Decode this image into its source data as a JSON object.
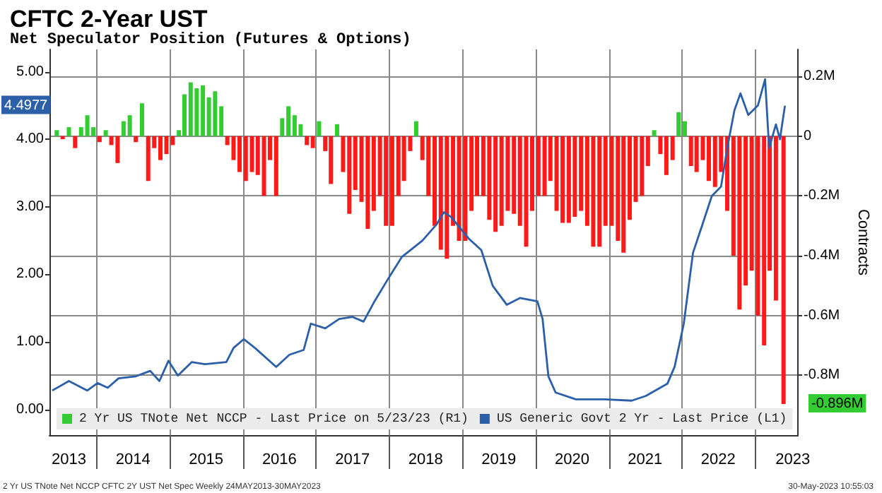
{
  "chart_data": {
    "type": "bar",
    "title": "CFTC 2-Year UST",
    "subtitle": "Net Speculator Position (Futures & Options)",
    "y2label": "Contracts",
    "annotations": [
      "4.4977",
      "-0.896M",
      "2 Yr US TNote Net NCCP CFTC 2Y UST Net Spec Weekly 24MAY2013-30MAY2023",
      "30-May-2023 10:55:03"
    ],
    "xlim": [
      "2013-05-10",
      "2023-08-03"
    ],
    "xticks": [
      {
        "value": "2013-08-15",
        "label": "2013"
      },
      {
        "value": "2014-01-01",
        "label": null
      },
      {
        "value": "2014-07-01",
        "label": "2014"
      },
      {
        "value": "2015-01-01",
        "label": null
      },
      {
        "value": "2015-07-01",
        "label": "2015"
      },
      {
        "value": "2016-01-01",
        "label": null
      },
      {
        "value": "2016-07-01",
        "label": "2016"
      },
      {
        "value": "2017-01-01",
        "label": null
      },
      {
        "value": "2017-07-01",
        "label": "2017"
      },
      {
        "value": "2018-01-01",
        "label": null
      },
      {
        "value": "2018-07-01",
        "label": "2018"
      },
      {
        "value": "2019-01-01",
        "label": null
      },
      {
        "value": "2019-07-01",
        "label": "2019"
      },
      {
        "value": "2020-01-01",
        "label": null
      },
      {
        "value": "2020-07-01",
        "label": "2020"
      },
      {
        "value": "2021-01-01",
        "label": null
      },
      {
        "value": "2021-07-01",
        "label": "2021"
      },
      {
        "value": "2022-01-01",
        "label": null
      },
      {
        "value": "2022-07-01",
        "label": "2022"
      },
      {
        "value": "2023-01-01",
        "label": null
      },
      {
        "value": "2023-07-08",
        "label": "2023"
      }
    ],
    "ylim": [
      -0.38,
      5.33
    ],
    "yticks": [
      {
        "value": 0,
        "label": "0.00"
      },
      {
        "value": 1,
        "label": "1.00"
      },
      {
        "value": 2,
        "label": "2.00"
      },
      {
        "value": 3,
        "label": "3.00"
      },
      {
        "value": 4,
        "label": "4.00"
      },
      {
        "value": 5,
        "label": "5.00"
      }
    ],
    "y2lim": [
      -1.0,
      0.29
    ],
    "y2ticks": [
      {
        "value": -0.8,
        "label": "-0.8M"
      },
      {
        "value": -0.6,
        "label": "-0.6M"
      },
      {
        "value": -0.4,
        "label": "-0.4M"
      },
      {
        "value": -0.2,
        "label": "-0.2M"
      },
      0,
      {
        "value": 0.2,
        "label": "0.2M"
      }
    ],
    "grid": true,
    "legend": "bottom left",
    "series": [
      {
        "name": "2 Yr US TNote Net NCCP - Last Price on 5/23/23 (R1)",
        "axis": "y2",
        "color": "#33cc33",
        "x": [
          "2013-06-15",
          "2013-08-15",
          "2013-10-15",
          "2013-11-15",
          "2013-12-15",
          "2014-02-15",
          "2014-05-15",
          "2014-06-15",
          "2014-08-15",
          "2015-02-15",
          "2015-03-15",
          "2015-04-15",
          "2015-05-15",
          "2015-06-15",
          "2015-07-15",
          "2015-08-15",
          "2015-09-15",
          "2016-07-15",
          "2016-08-15",
          "2016-09-15",
          "2016-10-15",
          "2017-01-15",
          "2017-04-15",
          "2018-05-15",
          "2021-08-15",
          "2021-12-15",
          "2022-01-15"
        ],
        "values": [
          0.02,
          0.03,
          0.03,
          0.07,
          0.03,
          0.02,
          0.05,
          0.07,
          0.11,
          0.02,
          0.14,
          0.18,
          0.16,
          0.17,
          0.13,
          0.15,
          0.1,
          0.06,
          0.1,
          0.07,
          0.04,
          0.05,
          0.04,
          0.05,
          0.02,
          0.08,
          0.05
        ]
      },
      {
        "axis": "y2",
        "color": "#ff1a1a",
        "x": [
          "2013-07-15",
          "2013-09-15",
          "2014-01-15",
          "2014-03-15",
          "2014-04-15",
          "2014-07-15",
          "2014-09-15",
          "2014-10-15",
          "2014-11-15",
          "2014-12-15",
          "2015-01-15",
          "2015-10-15",
          "2015-11-15",
          "2015-12-15",
          "2016-01-15",
          "2016-02-15",
          "2016-03-15",
          "2016-04-15",
          "2016-05-15",
          "2016-06-15",
          "2016-11-15",
          "2016-12-15",
          "2017-02-15",
          "2017-03-15",
          "2017-05-15",
          "2017-06-15",
          "2017-07-15",
          "2017-08-15",
          "2017-09-15",
          "2017-10-15",
          "2017-11-15",
          "2017-12-15",
          "2018-01-15",
          "2018-02-15",
          "2018-03-15",
          "2018-04-15",
          "2018-06-15",
          "2018-07-15",
          "2018-08-15",
          "2018-09-15",
          "2018-10-15",
          "2018-11-15",
          "2018-12-15",
          "2019-01-15",
          "2019-02-15",
          "2019-03-15",
          "2019-04-15",
          "2019-05-15",
          "2019-06-15",
          "2019-07-15",
          "2019-08-15",
          "2019-09-15",
          "2019-10-15",
          "2019-11-15",
          "2019-12-15",
          "2020-01-15",
          "2020-02-15",
          "2020-03-15",
          "2020-04-15",
          "2020-05-15",
          "2020-06-15",
          "2020-07-15",
          "2020-08-15",
          "2020-09-15",
          "2020-10-15",
          "2020-11-15",
          "2020-12-15",
          "2021-01-15",
          "2021-02-15",
          "2021-03-15",
          "2021-04-15",
          "2021-05-15",
          "2021-06-15",
          "2021-07-15",
          "2021-09-15",
          "2021-10-15",
          "2021-11-15",
          "2022-02-15",
          "2022-03-15",
          "2022-04-15",
          "2022-05-15",
          "2022-06-15",
          "2022-07-15",
          "2022-08-15",
          "2022-09-15",
          "2022-10-15",
          "2022-11-15",
          "2022-12-15",
          "2023-01-15",
          "2023-02-15",
          "2023-03-15",
          "2023-04-15",
          "2023-05-23"
        ],
        "values": [
          -0.01,
          -0.04,
          -0.02,
          -0.03,
          -0.09,
          -0.02,
          -0.15,
          -0.04,
          -0.08,
          -0.06,
          -0.03,
          -0.03,
          -0.08,
          -0.12,
          -0.15,
          -0.12,
          -0.13,
          -0.2,
          -0.08,
          -0.2,
          -0.03,
          -0.04,
          -0.05,
          -0.16,
          -0.12,
          -0.26,
          -0.18,
          -0.22,
          -0.31,
          -0.25,
          -0.2,
          -0.3,
          -0.3,
          -0.2,
          -0.15,
          -0.05,
          -0.08,
          -0.2,
          -0.3,
          -0.38,
          -0.41,
          -0.3,
          -0.35,
          -0.35,
          -0.25,
          -0.2,
          -0.2,
          -0.28,
          -0.32,
          -0.3,
          -0.25,
          -0.26,
          -0.3,
          -0.37,
          -0.25,
          -0.2,
          -0.2,
          -0.15,
          -0.25,
          -0.29,
          -0.29,
          -0.27,
          -0.25,
          -0.3,
          -0.37,
          -0.37,
          -0.3,
          -0.3,
          -0.35,
          -0.39,
          -0.28,
          -0.22,
          -0.2,
          -0.1,
          -0.06,
          -0.13,
          -0.08,
          -0.1,
          -0.12,
          -0.08,
          -0.15,
          -0.17,
          -0.12,
          -0.25,
          -0.4,
          -0.58,
          -0.5,
          -0.45,
          -0.6,
          -0.7,
          -0.45,
          -0.55,
          -0.896
        ]
      },
      {
        "name": "US Generic Govt 2 Yr - Last Price (L1)",
        "type": "line",
        "color": "#2b5fa8",
        "x": [
          "2013-05-24",
          "2013-08-15",
          "2013-11-15",
          "2014-01-05",
          "2014-02-25",
          "2014-04-20",
          "2014-07-15",
          "2014-09-25",
          "2014-11-10",
          "2014-12-25",
          "2015-02-10",
          "2015-04-20",
          "2015-06-25",
          "2015-10-10",
          "2015-11-15",
          "2016-01-05",
          "2016-03-01",
          "2016-06-15",
          "2016-08-20",
          "2016-10-30",
          "2016-12-05",
          "2017-02-15",
          "2017-04-25",
          "2017-07-01",
          "2017-08-25",
          "2017-10-15",
          "2017-12-25",
          "2018-03-05",
          "2018-06-15",
          "2018-08-25",
          "2018-09-30",
          "2018-11-05",
          "2019-02-01",
          "2019-04-05",
          "2019-06-01",
          "2019-08-10",
          "2019-10-15",
          "2020-01-10",
          "2020-02-05",
          "2020-03-05",
          "2020-04-10",
          "2020-07-20",
          "2020-12-10",
          "2021-04-25",
          "2021-07-05",
          "2021-10-20",
          "2021-11-25",
          "2022-01-10",
          "2022-02-25",
          "2022-04-10",
          "2022-05-30",
          "2022-07-15",
          "2022-08-15",
          "2022-09-20",
          "2022-10-20",
          "2022-11-28",
          "2023-01-15",
          "2023-02-20",
          "2023-03-12",
          "2023-04-15",
          "2023-05-05",
          "2023-05-30"
        ],
        "values": [
          0.28,
          0.42,
          0.28,
          0.39,
          0.32,
          0.46,
          0.49,
          0.57,
          0.42,
          0.72,
          0.5,
          0.7,
          0.67,
          0.7,
          0.91,
          1.04,
          0.91,
          0.63,
          0.81,
          0.88,
          1.27,
          1.2,
          1.34,
          1.37,
          1.3,
          1.58,
          1.93,
          2.26,
          2.5,
          2.74,
          2.92,
          2.85,
          2.53,
          2.36,
          1.83,
          1.55,
          1.65,
          1.6,
          1.34,
          0.49,
          0.25,
          0.15,
          0.15,
          0.13,
          0.2,
          0.38,
          0.63,
          1.27,
          2.32,
          2.71,
          3.16,
          3.3,
          3.87,
          4.43,
          4.68,
          4.36,
          4.5,
          4.89,
          3.87,
          4.22,
          4.0,
          4.4977
        ]
      }
    ]
  }
}
